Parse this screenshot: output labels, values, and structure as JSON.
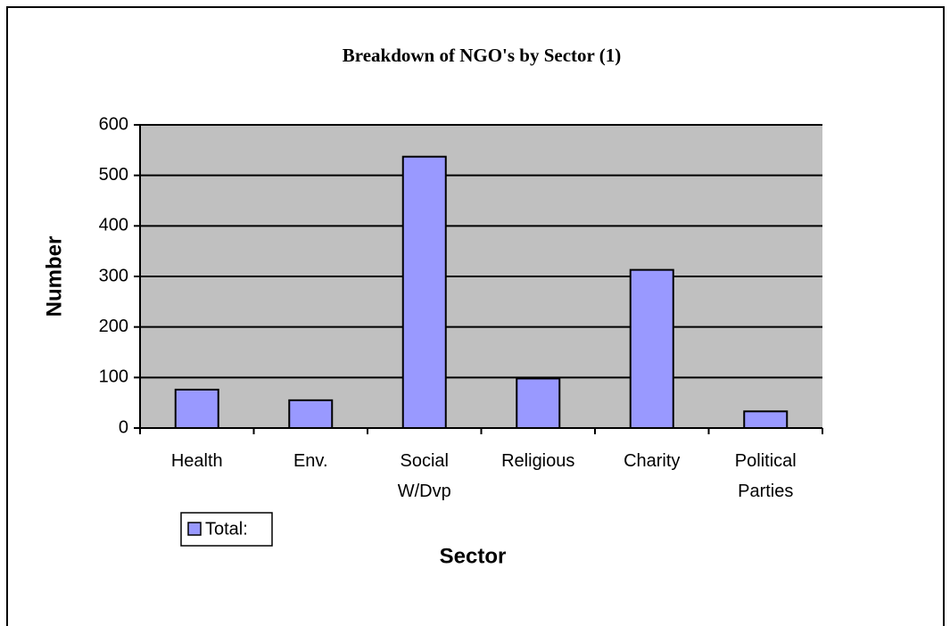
{
  "chart_data": {
    "type": "bar",
    "title": "Breakdown of NGO's by Sector (1)",
    "x_label": "Sector",
    "y_label": "Number",
    "categories": [
      "Health",
      "Env.",
      "Social W/Dvp",
      "Religious",
      "Charity",
      "Political Parties"
    ],
    "series": [
      {
        "name": "Total:",
        "color": "#9999ff",
        "values": [
          76,
          55,
          537,
          98,
          313,
          33
        ]
      }
    ],
    "ylim": [
      0,
      600
    ],
    "yticks": [
      0,
      100,
      200,
      300,
      400,
      500,
      600
    ],
    "grid": true
  }
}
